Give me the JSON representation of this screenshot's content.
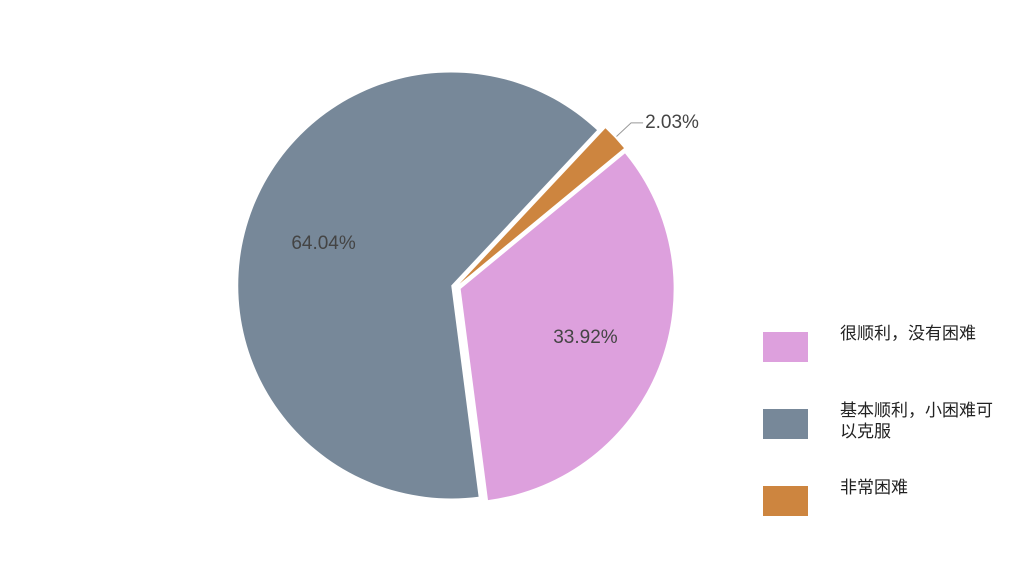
{
  "chart_data": {
    "type": "pie",
    "categories": [
      "很顺利，没有困难",
      "基本顺利，小困难可以克服",
      "非常困难"
    ],
    "values": [
      33.92,
      64.04,
      2.03
    ],
    "value_labels": [
      "33.92%",
      "64.04%",
      "2.03%"
    ],
    "colors": [
      "#dda0dd",
      "#778899",
      "#cd853f"
    ],
    "legend": "right"
  }
}
